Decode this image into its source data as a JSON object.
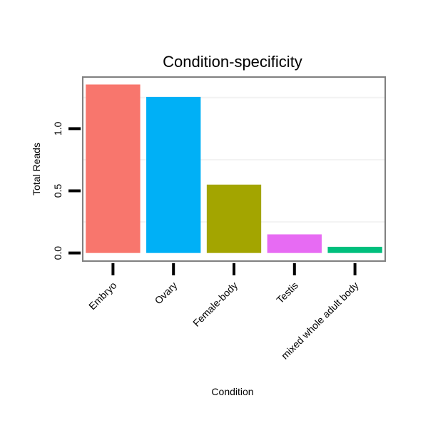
{
  "chart_data": {
    "type": "bar",
    "title": "Condition-specificity",
    "xlabel": "Condition",
    "ylabel": "Total Reads",
    "categories": [
      "Embryo",
      "Ovary",
      "Female-body",
      "Testis",
      "mixed whole adult body"
    ],
    "values": [
      1.355,
      1.255,
      0.55,
      0.15,
      0.05
    ],
    "colors": [
      "#F8766D",
      "#00B0F6",
      "#A3A500",
      "#E76BF3",
      "#00BF7D"
    ],
    "yticks": [
      0.0,
      0.5,
      1.0
    ],
    "ytick_labels": [
      "0.0",
      "0.5",
      "1.0"
    ],
    "ylim": [
      -0.065,
      1.415
    ],
    "grid": true,
    "legend": "none"
  }
}
